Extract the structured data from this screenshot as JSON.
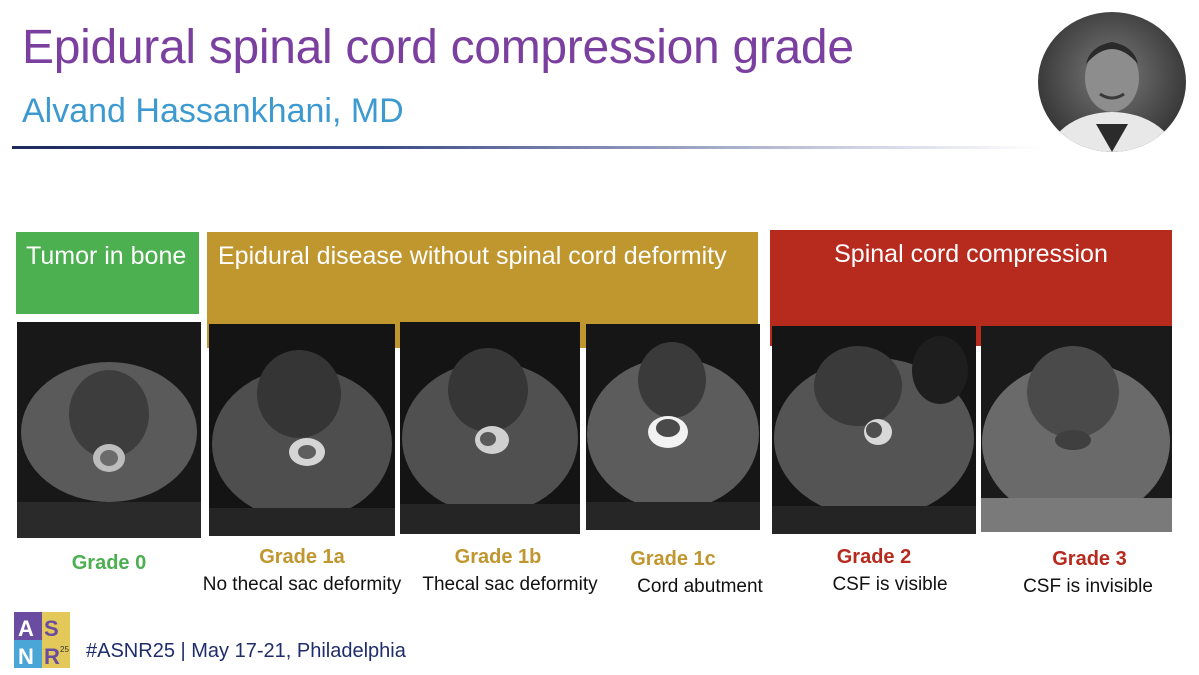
{
  "header": {
    "title": "Epidural spinal cord compression grade",
    "author": "Alvand Hassankhani, MD"
  },
  "categories": {
    "bone": "Tumor in bone",
    "epidural": "Epidural disease without spinal cord deformity",
    "compression": "Spinal cord compression"
  },
  "grades": [
    {
      "grade": "Grade 0",
      "desc": "",
      "color": "#4caf50"
    },
    {
      "grade": "Grade 1a",
      "desc": "No thecal sac deformity",
      "color": "#c0962f"
    },
    {
      "grade": "Grade 1b",
      "desc": "Thecal sac deformity",
      "color": "#c0962f"
    },
    {
      "grade": "Grade 1c",
      "desc": "Cord abutment",
      "color": "#c0962f"
    },
    {
      "grade": "Grade 2",
      "desc": "CSF is visible",
      "color": "#b72a1e"
    },
    {
      "grade": "Grade 3",
      "desc": "CSF is invisible",
      "color": "#b72a1e"
    }
  ],
  "footer": {
    "logo_text": "ASNR 25",
    "text": "#ASNR25 | May 17-21, Philadelphia"
  }
}
